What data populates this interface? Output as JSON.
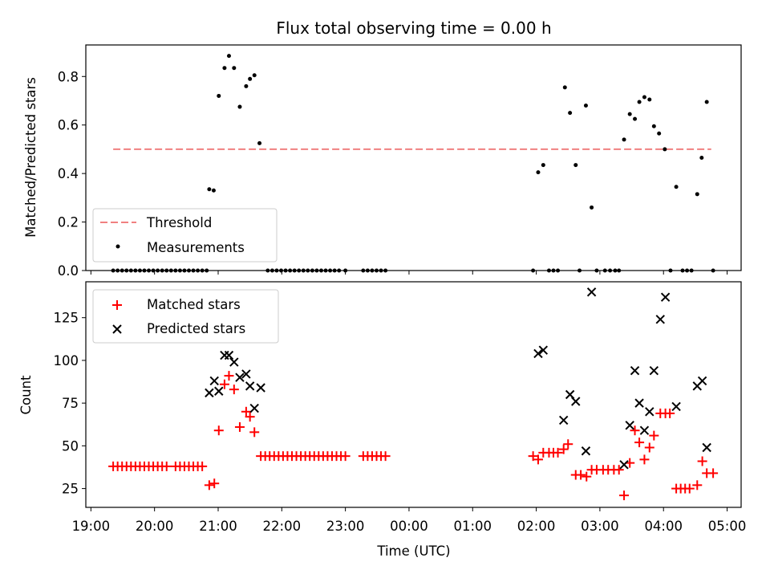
{
  "chart_data": [
    {
      "type": "scatter",
      "title": "Flux total observing time = 0.00 h",
      "ylabel": "Matched/Predicted stars",
      "xlabel": "",
      "x_range_hours": [
        18.92,
        29.22
      ],
      "ylim": [
        0,
        0.93
      ],
      "yticks": [
        0.0,
        0.2,
        0.4,
        0.6,
        0.8
      ],
      "ytick_labels": [
        "0.0",
        "0.2",
        "0.4",
        "0.6",
        "0.8"
      ],
      "legend": {
        "position": "lower left",
        "entries": [
          "Threshold",
          "Measurements"
        ]
      },
      "threshold": {
        "name": "Threshold",
        "y": 0.5,
        "x_start": 19.35,
        "x_end": 28.75,
        "color": "#f08080"
      },
      "series": [
        {
          "name": "Measurements",
          "color": "#000000",
          "points": [
            [
              19.35,
              0
            ],
            [
              19.42,
              0
            ],
            [
              19.49,
              0
            ],
            [
              19.56,
              0
            ],
            [
              19.63,
              0
            ],
            [
              19.7,
              0
            ],
            [
              19.77,
              0
            ],
            [
              19.84,
              0
            ],
            [
              19.91,
              0
            ],
            [
              19.98,
              0
            ],
            [
              20.05,
              0
            ],
            [
              20.12,
              0
            ],
            [
              20.19,
              0
            ],
            [
              20.26,
              0
            ],
            [
              20.33,
              0
            ],
            [
              20.4,
              0
            ],
            [
              20.47,
              0
            ],
            [
              20.54,
              0
            ],
            [
              20.61,
              0
            ],
            [
              20.68,
              0
            ],
            [
              20.75,
              0
            ],
            [
              20.82,
              0
            ],
            [
              20.86,
              0.335
            ],
            [
              20.93,
              0.33
            ],
            [
              21.01,
              0.72
            ],
            [
              21.1,
              0.835
            ],
            [
              21.17,
              0.885
            ],
            [
              21.25,
              0.835
            ],
            [
              21.34,
              0.675
            ],
            [
              21.44,
              0.76
            ],
            [
              21.5,
              0.79
            ],
            [
              21.57,
              0.805
            ],
            [
              21.65,
              0.525
            ],
            [
              21.78,
              0
            ],
            [
              21.85,
              0
            ],
            [
              21.92,
              0
            ],
            [
              21.99,
              0
            ],
            [
              22.06,
              0
            ],
            [
              22.13,
              0
            ],
            [
              22.2,
              0
            ],
            [
              22.27,
              0
            ],
            [
              22.34,
              0
            ],
            [
              22.41,
              0
            ],
            [
              22.48,
              0
            ],
            [
              22.55,
              0
            ],
            [
              22.62,
              0
            ],
            [
              22.69,
              0
            ],
            [
              22.76,
              0
            ],
            [
              22.83,
              0
            ],
            [
              22.9,
              0
            ],
            [
              23.0,
              0
            ],
            [
              23.28,
              0
            ],
            [
              23.35,
              0
            ],
            [
              23.42,
              0
            ],
            [
              23.49,
              0
            ],
            [
              23.56,
              0
            ],
            [
              23.63,
              0
            ],
            [
              25.95,
              0
            ],
            [
              26.03,
              0.405
            ],
            [
              26.11,
              0.435
            ],
            [
              26.2,
              0
            ],
            [
              26.27,
              0
            ],
            [
              26.34,
              0
            ],
            [
              26.45,
              0.755
            ],
            [
              26.53,
              0.65
            ],
            [
              26.62,
              0.435
            ],
            [
              26.68,
              0
            ],
            [
              26.78,
              0.68
            ],
            [
              26.87,
              0.26
            ],
            [
              26.95,
              0
            ],
            [
              27.08,
              0
            ],
            [
              27.16,
              0
            ],
            [
              27.24,
              0
            ],
            [
              27.3,
              0
            ],
            [
              27.38,
              0.54
            ],
            [
              27.47,
              0.645
            ],
            [
              27.55,
              0.625
            ],
            [
              27.62,
              0.695
            ],
            [
              27.7,
              0.715
            ],
            [
              27.78,
              0.705
            ],
            [
              27.85,
              0.595
            ],
            [
              27.93,
              0.565
            ],
            [
              28.02,
              0.5
            ],
            [
              28.11,
              0
            ],
            [
              28.2,
              0.345
            ],
            [
              28.3,
              0
            ],
            [
              28.37,
              0
            ],
            [
              28.44,
              0
            ],
            [
              28.53,
              0.315
            ],
            [
              28.6,
              0.465
            ],
            [
              28.68,
              0.695
            ],
            [
              28.78,
              0
            ]
          ]
        }
      ]
    },
    {
      "type": "scatter",
      "xlabel": "Time (UTC)",
      "ylabel": "Count",
      "ylim": [
        14,
        146
      ],
      "yticks": [
        25,
        50,
        75,
        100,
        125
      ],
      "ytick_labels": [
        "25",
        "50",
        "75",
        "100",
        "125"
      ],
      "xticks_hours": [
        19,
        20,
        21,
        22,
        23,
        24,
        25,
        26,
        27,
        28,
        29
      ],
      "xtick_labels": [
        "19:00",
        "20:00",
        "21:00",
        "22:00",
        "23:00",
        "00:00",
        "01:00",
        "02:00",
        "03:00",
        "04:00",
        "05:00"
      ],
      "legend": {
        "position": "upper left",
        "entries": [
          "Matched stars",
          "Predicted stars"
        ]
      },
      "series": [
        {
          "name": "Matched stars",
          "marker": "plus",
          "color": "#ff0000",
          "points": [
            [
              19.35,
              38
            ],
            [
              19.42,
              38
            ],
            [
              19.49,
              38
            ],
            [
              19.56,
              38
            ],
            [
              19.63,
              38
            ],
            [
              19.7,
              38
            ],
            [
              19.77,
              38
            ],
            [
              19.84,
              38
            ],
            [
              19.91,
              38
            ],
            [
              19.98,
              38
            ],
            [
              20.05,
              38
            ],
            [
              20.12,
              38
            ],
            [
              20.19,
              38
            ],
            [
              20.33,
              38
            ],
            [
              20.4,
              38
            ],
            [
              20.47,
              38
            ],
            [
              20.54,
              38
            ],
            [
              20.61,
              38
            ],
            [
              20.68,
              38
            ],
            [
              20.75,
              38
            ],
            [
              20.86,
              27
            ],
            [
              20.94,
              28
            ],
            [
              21.01,
              59
            ],
            [
              21.1,
              86
            ],
            [
              21.17,
              91
            ],
            [
              21.25,
              83
            ],
            [
              21.34,
              61
            ],
            [
              21.44,
              70
            ],
            [
              21.5,
              67
            ],
            [
              21.57,
              58
            ],
            [
              21.67,
              44
            ],
            [
              21.74,
              44
            ],
            [
              21.81,
              44
            ],
            [
              21.88,
              44
            ],
            [
              21.95,
              44
            ],
            [
              22.02,
              44
            ],
            [
              22.09,
              44
            ],
            [
              22.16,
              44
            ],
            [
              22.23,
              44
            ],
            [
              22.3,
              44
            ],
            [
              22.37,
              44
            ],
            [
              22.44,
              44
            ],
            [
              22.51,
              44
            ],
            [
              22.58,
              44
            ],
            [
              22.65,
              44
            ],
            [
              22.72,
              44
            ],
            [
              22.79,
              44
            ],
            [
              22.86,
              44
            ],
            [
              22.93,
              44
            ],
            [
              23.0,
              44
            ],
            [
              23.28,
              44
            ],
            [
              23.35,
              44
            ],
            [
              23.42,
              44
            ],
            [
              23.49,
              44
            ],
            [
              23.56,
              44
            ],
            [
              23.63,
              44
            ],
            [
              25.95,
              44
            ],
            [
              26.03,
              42
            ],
            [
              26.11,
              46
            ],
            [
              26.2,
              46
            ],
            [
              26.27,
              46
            ],
            [
              26.34,
              46
            ],
            [
              26.43,
              48
            ],
            [
              26.5,
              51
            ],
            [
              26.62,
              33
            ],
            [
              26.7,
              33
            ],
            [
              26.79,
              32
            ],
            [
              26.87,
              36
            ],
            [
              26.95,
              36
            ],
            [
              27.05,
              36
            ],
            [
              27.13,
              36
            ],
            [
              27.22,
              36
            ],
            [
              27.3,
              36
            ],
            [
              27.38,
              21
            ],
            [
              27.47,
              40
            ],
            [
              27.55,
              59
            ],
            [
              27.62,
              52
            ],
            [
              27.7,
              42
            ],
            [
              27.78,
              49
            ],
            [
              27.85,
              56
            ],
            [
              27.95,
              69
            ],
            [
              28.03,
              69
            ],
            [
              28.1,
              69
            ],
            [
              28.2,
              25
            ],
            [
              28.27,
              25
            ],
            [
              28.34,
              25
            ],
            [
              28.41,
              25
            ],
            [
              28.53,
              27
            ],
            [
              28.61,
              41
            ],
            [
              28.68,
              34
            ],
            [
              28.78,
              34
            ]
          ]
        },
        {
          "name": "Predicted stars",
          "marker": "x",
          "color": "#000000",
          "points": [
            [
              20.86,
              81
            ],
            [
              20.94,
              88
            ],
            [
              21.01,
              82
            ],
            [
              21.1,
              103
            ],
            [
              21.17,
              103
            ],
            [
              21.25,
              99
            ],
            [
              21.34,
              90
            ],
            [
              21.44,
              92
            ],
            [
              21.5,
              85
            ],
            [
              21.57,
              72
            ],
            [
              21.67,
              84
            ],
            [
              26.03,
              104
            ],
            [
              26.11,
              106
            ],
            [
              26.43,
              65
            ],
            [
              26.53,
              80
            ],
            [
              26.62,
              76
            ],
            [
              26.78,
              47
            ],
            [
              26.87,
              140
            ],
            [
              27.38,
              39
            ],
            [
              27.47,
              62
            ],
            [
              27.55,
              94
            ],
            [
              27.62,
              75
            ],
            [
              27.7,
              59
            ],
            [
              27.78,
              70
            ],
            [
              27.85,
              94
            ],
            [
              27.95,
              124
            ],
            [
              28.03,
              137
            ],
            [
              28.2,
              73
            ],
            [
              28.53,
              85
            ],
            [
              28.61,
              88
            ],
            [
              28.68,
              49
            ]
          ]
        }
      ]
    }
  ]
}
